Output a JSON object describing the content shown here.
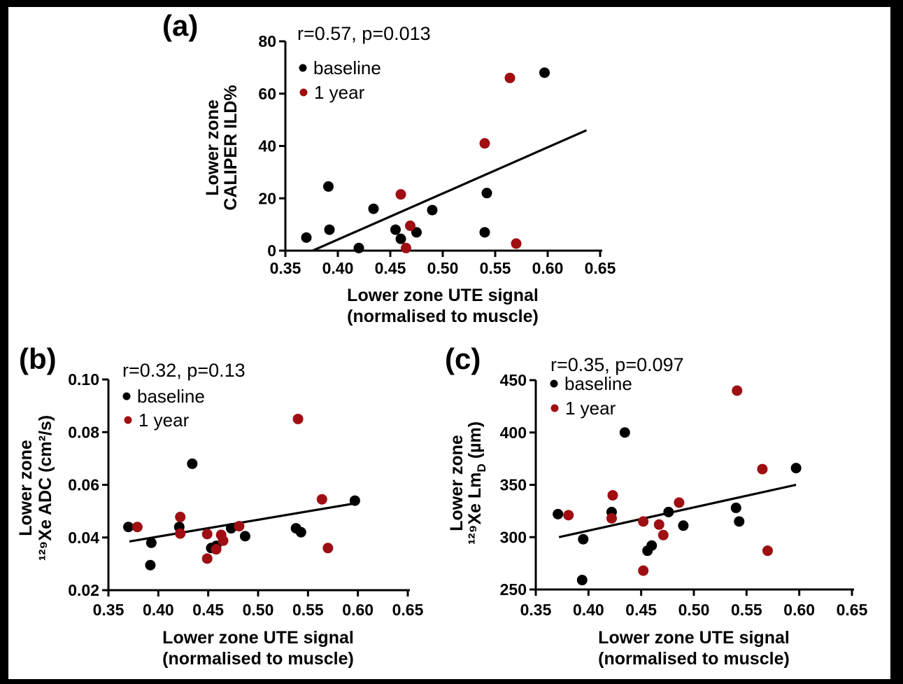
{
  "colors": {
    "baseline": "#000000",
    "one_year": "#9F0E12",
    "axis": "#000000",
    "background": "#FFFFFF",
    "frame": "#000000"
  },
  "chart_data": [
    {
      "id": "a",
      "panel_label": "(a)",
      "type": "scatter",
      "stats": "r=0.57, p=0.013",
      "legend": [
        {
          "label": "baseline",
          "color": "#000000"
        },
        {
          "label": "1 year",
          "color": "#9F0E12"
        }
      ],
      "xlabel_lines": [
        "Lower zone UTE signal",
        "(normalised to muscle)"
      ],
      "ylabel_lines": [
        [
          {
            "t": "Lower zone"
          }
        ],
        [
          {
            "t": "CALIPER ILD%"
          }
        ]
      ],
      "xlim": [
        0.35,
        0.65
      ],
      "x_ticks": [
        0.35,
        0.4,
        0.45,
        0.5,
        0.55,
        0.6,
        0.65
      ],
      "x_tick_labels": [
        "0.35",
        "0.40",
        "0.45",
        "0.50",
        "0.55",
        "0.60",
        "0.65"
      ],
      "ylim": [
        0,
        80
      ],
      "y_ticks": [
        0,
        20,
        40,
        60,
        80
      ],
      "y_tick_labels": [
        "0",
        "20",
        "40",
        "60",
        "80"
      ],
      "series": [
        {
          "name": "baseline",
          "color": "#000000",
          "points": [
            [
              0.37,
              5
            ],
            [
              0.391,
              24.5
            ],
            [
              0.392,
              8
            ],
            [
              0.42,
              1
            ],
            [
              0.434,
              16
            ],
            [
              0.455,
              8
            ],
            [
              0.46,
              4.5
            ],
            [
              0.475,
              7
            ],
            [
              0.49,
              15.5
            ],
            [
              0.54,
              7
            ],
            [
              0.542,
              22
            ],
            [
              0.597,
              68
            ]
          ]
        },
        {
          "name": "1 year",
          "color": "#9F0E12",
          "points": [
            [
              0.46,
              21.5
            ],
            [
              0.465,
              1
            ],
            [
              0.469,
              9.5
            ],
            [
              0.54,
              41
            ],
            [
              0.564,
              66
            ],
            [
              0.57,
              2.7
            ]
          ]
        }
      ],
      "trendline": {
        "x1": 0.376,
        "y1": 0,
        "x2": 0.637,
        "y2": 46
      }
    },
    {
      "id": "b",
      "panel_label": "(b)",
      "type": "scatter",
      "stats": "r=0.32, p=0.13",
      "legend": [
        {
          "label": "baseline",
          "color": "#000000"
        },
        {
          "label": "1 year",
          "color": "#9F0E12"
        }
      ],
      "xlabel_lines": [
        "Lower zone UTE signal",
        "(normalised to muscle)"
      ],
      "ylabel_lines": [
        [
          {
            "t": "Lower zone"
          }
        ],
        [
          {
            "t": "¹²⁹Xe ADC (cm²/s)"
          }
        ]
      ],
      "xlim": [
        0.35,
        0.65
      ],
      "x_ticks": [
        0.35,
        0.4,
        0.45,
        0.5,
        0.55,
        0.6,
        0.65
      ],
      "x_tick_labels": [
        "0.35",
        "0.40",
        "0.45",
        "0.50",
        "0.55",
        "0.60",
        "0.65"
      ],
      "ylim": [
        0.02,
        0.1
      ],
      "y_ticks": [
        0.02,
        0.04,
        0.06,
        0.08,
        0.1
      ],
      "y_tick_labels": [
        "0.02",
        "0.04",
        "0.06",
        "0.08",
        "0.10"
      ],
      "series": [
        {
          "name": "baseline",
          "color": "#000000",
          "points": [
            [
              0.37,
              0.044
            ],
            [
              0.392,
              0.0295
            ],
            [
              0.393,
              0.038
            ],
            [
              0.421,
              0.044
            ],
            [
              0.434,
              0.068
            ],
            [
              0.453,
              0.036
            ],
            [
              0.458,
              0.0368
            ],
            [
              0.473,
              0.0435
            ],
            [
              0.487,
              0.0405
            ],
            [
              0.538,
              0.0435
            ],
            [
              0.543,
              0.042
            ],
            [
              0.597,
              0.054
            ]
          ]
        },
        {
          "name": "1 year",
          "color": "#9F0E12",
          "points": [
            [
              0.379,
              0.044
            ],
            [
              0.422,
              0.0478
            ],
            [
              0.422,
              0.0415
            ],
            [
              0.449,
              0.0413
            ],
            [
              0.449,
              0.032
            ],
            [
              0.458,
              0.0355
            ],
            [
              0.463,
              0.041
            ],
            [
              0.465,
              0.0388
            ],
            [
              0.481,
              0.0443
            ],
            [
              0.54,
              0.085
            ],
            [
              0.564,
              0.0545
            ],
            [
              0.57,
              0.036
            ]
          ]
        }
      ],
      "trendline": {
        "x1": 0.371,
        "y1": 0.0385,
        "x2": 0.598,
        "y2": 0.053
      }
    },
    {
      "id": "c",
      "panel_label": "(c)",
      "type": "scatter",
      "stats": "r=0.35, p=0.097",
      "legend": [
        {
          "label": "baseline",
          "color": "#000000"
        },
        {
          "label": "1 year",
          "color": "#9F0E12"
        }
      ],
      "xlabel_lines": [
        "Lower zone UTE signal",
        "(normalised to muscle)"
      ],
      "ylabel_lines": [
        [
          {
            "t": "Lower zone"
          }
        ],
        [
          {
            "t": "¹²⁹Xe Lm"
          },
          {
            "t": "D",
            "sub": true
          },
          {
            "t": " (µm)"
          }
        ]
      ],
      "xlim": [
        0.35,
        0.65
      ],
      "x_ticks": [
        0.35,
        0.4,
        0.45,
        0.5,
        0.55,
        0.6,
        0.65
      ],
      "x_tick_labels": [
        "0.35",
        "0.40",
        "0.45",
        "0.50",
        "0.55",
        "0.60",
        "0.65"
      ],
      "ylim": [
        250,
        450
      ],
      "y_ticks": [
        250,
        300,
        350,
        400,
        450
      ],
      "y_tick_labels": [
        "250",
        "300",
        "350",
        "400",
        "450"
      ],
      "series": [
        {
          "name": "baseline",
          "color": "#000000",
          "points": [
            [
              0.371,
              322
            ],
            [
              0.394,
              259
            ],
            [
              0.395,
              298
            ],
            [
              0.422,
              324
            ],
            [
              0.4345,
              400
            ],
            [
              0.456,
              287
            ],
            [
              0.46,
              292
            ],
            [
              0.476,
              324
            ],
            [
              0.49,
              311
            ],
            [
              0.54,
              328
            ],
            [
              0.543,
              315
            ],
            [
              0.597,
              366
            ]
          ]
        },
        {
          "name": "1 year",
          "color": "#9F0E12",
          "points": [
            [
              0.381,
              321
            ],
            [
              0.422,
              318
            ],
            [
              0.423,
              340
            ],
            [
              0.452,
              315
            ],
            [
              0.452,
              268
            ],
            [
              0.467,
              312
            ],
            [
              0.471,
              302
            ],
            [
              0.486,
              333
            ],
            [
              0.541,
              440
            ],
            [
              0.565,
              365
            ],
            [
              0.57,
              287
            ]
          ]
        }
      ],
      "trendline": {
        "x1": 0.372,
        "y1": 300,
        "x2": 0.597,
        "y2": 350
      }
    }
  ]
}
